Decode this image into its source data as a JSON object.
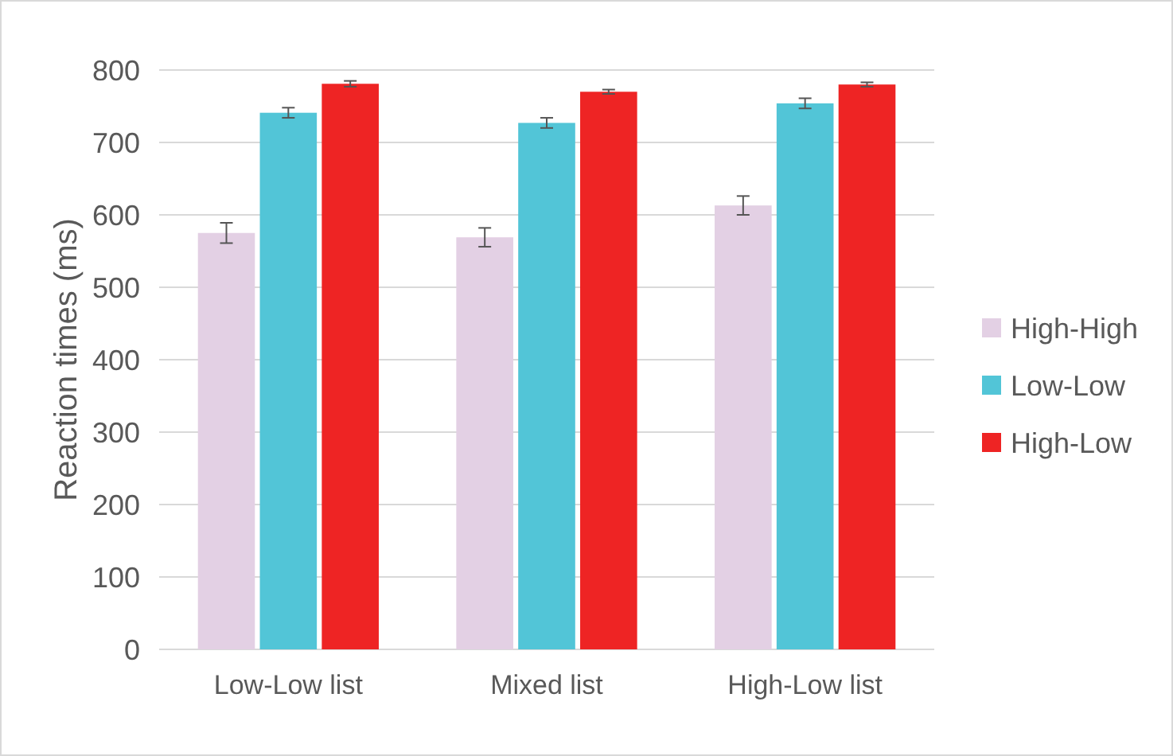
{
  "chart_data": {
    "type": "bar",
    "ylabel": "Reaction times (ms)",
    "categories": [
      "Low-Low list",
      "Mixed list",
      "High-Low list"
    ],
    "series": [
      {
        "name": "High-High",
        "color": "#e3d0e4",
        "values": [
          575,
          569,
          613
        ],
        "errors": [
          14,
          13,
          13
        ]
      },
      {
        "name": "Low-Low",
        "color": "#52c5d7",
        "values": [
          741,
          727,
          754
        ],
        "errors": [
          7,
          7,
          7
        ]
      },
      {
        "name": "High-Low",
        "color": "#ee2424",
        "values": [
          781,
          770,
          780
        ],
        "errors": [
          4,
          3,
          3
        ]
      }
    ],
    "ylim": [
      0,
      800
    ],
    "yticks": [
      0,
      100,
      200,
      300,
      400,
      500,
      600,
      700,
      800
    ],
    "grid": "y",
    "legend": "right"
  }
}
